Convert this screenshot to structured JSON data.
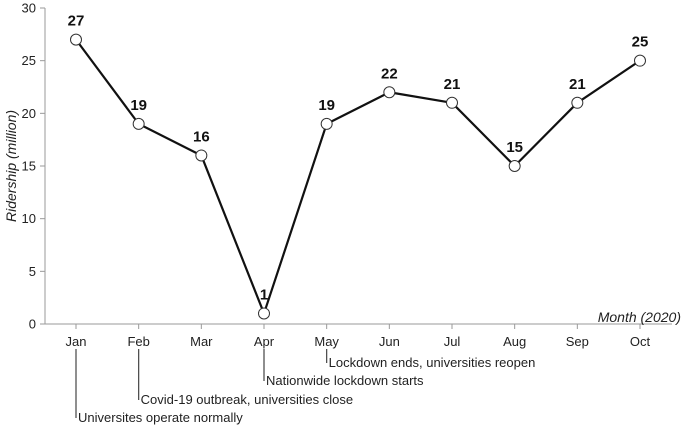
{
  "chart_data": {
    "type": "line",
    "categories": [
      "Jan",
      "Feb",
      "Mar",
      "Apr",
      "May",
      "Jun",
      "Jul",
      "Aug",
      "Sep",
      "Oct"
    ],
    "series": [
      {
        "values": [
          27,
          19,
          16,
          1,
          19,
          22,
          21,
          15,
          21,
          25
        ],
        "labels": [
          "27",
          "19",
          "16",
          "1",
          "19",
          "22",
          "21",
          "15",
          "21",
          "25"
        ]
      }
    ],
    "xlabel": "Month (2020)",
    "ylabel": "Ridership (million)",
    "ylim": [
      0,
      30
    ],
    "yticks": [
      0,
      5,
      10,
      15,
      20,
      25,
      30
    ],
    "grid": false,
    "marker": "hollow-circle",
    "colors": {
      "line": "#111111",
      "marker_fill": "#ffffff",
      "axis": "#9a9a9a",
      "annotation": "#444444"
    },
    "annotations": [
      {
        "month": "Jan",
        "text": "Universites operate normally"
      },
      {
        "month": "Feb",
        "text": "Covid-19 outbreak, universities close"
      },
      {
        "month": "Apr",
        "text": "Nationwide lockdown starts"
      },
      {
        "month": "May",
        "text": "Lockdown ends, universities reopen"
      }
    ]
  }
}
